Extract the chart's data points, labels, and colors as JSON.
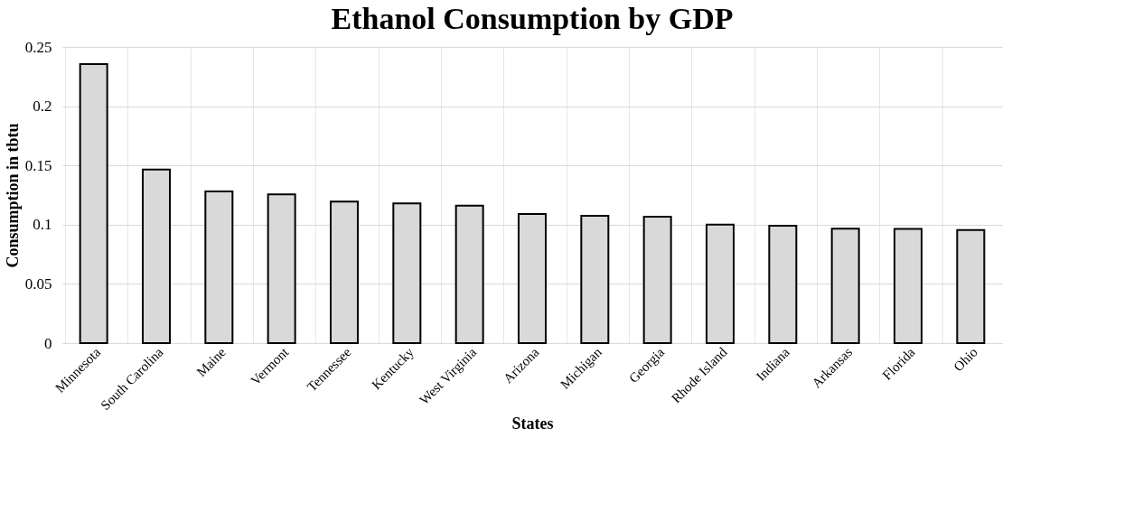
{
  "chart_data": {
    "type": "bar",
    "title": "Ethanol Consumption by GDP",
    "xlabel": "States",
    "ylabel": "Consumption in tbtu",
    "categories": [
      "Minnesota",
      "South Carolina",
      "Maine",
      "Vermont",
      "Tennessee",
      "Kentucky",
      "West Virginia",
      "Arizona",
      "Michigan",
      "Georgia",
      "Rhode Island",
      "Indiana",
      "Arkansas",
      "Florida",
      "Ohio"
    ],
    "values": [
      0.2355,
      0.1466,
      0.128,
      0.1255,
      0.1195,
      0.118,
      0.116,
      0.109,
      0.1074,
      0.1068,
      0.1,
      0.099,
      0.0967,
      0.0965,
      0.0954
    ],
    "color": "#d9d9d9",
    "ylim": [
      0,
      0.25
    ],
    "yticks": [
      0,
      0.05,
      0.1,
      0.15,
      0.2,
      0.25
    ],
    "grid": true
  }
}
